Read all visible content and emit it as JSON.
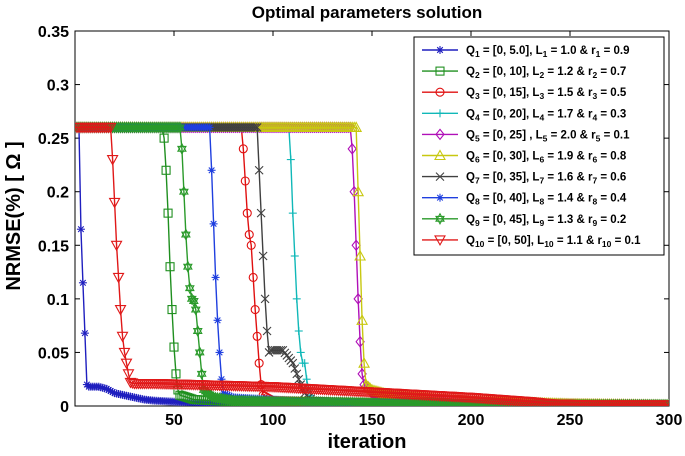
{
  "chart_data": {
    "type": "line",
    "title": "Optimal parameters solution",
    "xlabel": "iteration",
    "ylabel": "NRMSE(%) [ Ω ]",
    "xlim": [
      0,
      300
    ],
    "ylim": [
      0,
      0.35
    ],
    "x_ticks": [
      "50",
      "100",
      "150",
      "200",
      "250",
      "300"
    ],
    "y_ticks": [
      "0",
      "0.05",
      "0.1",
      "0.15",
      "0.2",
      "0.25",
      "0.3",
      "0.35"
    ],
    "grid": false,
    "legend_position": "top-right",
    "series": [
      {
        "name": "Q1 = [0, 5.0], L1 = 1.0 & r1 = 0.9",
        "color": "#1f1fbf",
        "marker": "asterisk",
        "x": [
          0,
          2,
          3,
          4,
          5,
          6,
          7,
          8,
          12,
          16,
          20,
          25,
          30,
          35,
          40,
          50,
          60,
          80,
          100,
          150,
          200,
          250,
          300
        ],
        "y": [
          0.26,
          0.26,
          0.165,
          0.115,
          0.068,
          0.02,
          0.018,
          0.018,
          0.018,
          0.016,
          0.012,
          0.01,
          0.008,
          0.006,
          0.005,
          0.004,
          0.003,
          0.002,
          0.0015,
          0.001,
          0.001,
          0.001,
          0.001
        ]
      },
      {
        "name": "Q2 = [0, 10], L2 = 1.2 & r2 = 0.7",
        "color": "#1f8f1f",
        "marker": "square",
        "x": [
          0,
          44,
          45,
          46,
          47,
          48,
          49,
          50,
          51,
          52,
          53,
          55,
          60,
          80,
          100,
          150,
          200,
          250,
          300
        ],
        "y": [
          0.26,
          0.26,
          0.25,
          0.22,
          0.18,
          0.13,
          0.09,
          0.055,
          0.03,
          0.015,
          0.01,
          0.009,
          0.006,
          0.004,
          0.003,
          0.002,
          0.001,
          0.001,
          0.001
        ]
      },
      {
        "name": "Q3 = [0, 15], L3 = 1.5 & r3 = 0.5",
        "color": "#e01010",
        "marker": "circle",
        "x": [
          0,
          84,
          85,
          86,
          87,
          88,
          89,
          90,
          91,
          92,
          93,
          94,
          95,
          100,
          150,
          200,
          250,
          300
        ],
        "y": [
          0.26,
          0.26,
          0.24,
          0.21,
          0.18,
          0.16,
          0.15,
          0.12,
          0.09,
          0.065,
          0.04,
          0.02,
          0.01,
          0.005,
          0.003,
          0.002,
          0.001,
          0.001
        ]
      },
      {
        "name": "Q4 = [0, 20], L4 = 1.7 & r4 = 0.3",
        "color": "#10b8b8",
        "marker": "plus",
        "x": [
          0,
          108,
          109,
          110,
          111,
          112,
          113,
          114,
          115,
          116,
          117,
          118,
          119,
          120,
          150,
          200,
          250,
          300
        ],
        "y": [
          0.26,
          0.26,
          0.23,
          0.18,
          0.14,
          0.1,
          0.07,
          0.05,
          0.04,
          0.04,
          0.025,
          0.015,
          0.01,
          0.005,
          0.003,
          0.002,
          0.001,
          0.001
        ]
      },
      {
        "name": "Q5 = [0, 25] , L5 = 2.0 & r5 = 0.1",
        "color": "#b010b8",
        "marker": "diamond",
        "x": [
          0,
          139,
          140,
          141,
          142,
          143,
          144,
          145,
          146,
          147,
          148,
          150,
          160,
          200,
          250,
          300
        ],
        "y": [
          0.26,
          0.26,
          0.24,
          0.2,
          0.15,
          0.1,
          0.06,
          0.03,
          0.02,
          0.018,
          0.018,
          0.012,
          0.008,
          0.004,
          0.002,
          0.001
        ]
      },
      {
        "name": "Q6 = [0, 30], L6 = 1.9 & r6 = 0.8",
        "color": "#c8c810",
        "marker": "triangle",
        "x": [
          0,
          142,
          143,
          144,
          145,
          146,
          147,
          148,
          150,
          160,
          200,
          250,
          300
        ],
        "y": [
          0.26,
          0.26,
          0.2,
          0.14,
          0.08,
          0.04,
          0.02,
          0.018,
          0.015,
          0.01,
          0.005,
          0.002,
          0.001
        ]
      },
      {
        "name": "Q7 = [0, 35], L7 = 1.6 & r7 = 0.6",
        "color": "#404040",
        "marker": "x",
        "x": [
          0,
          92,
          93,
          94,
          95,
          96,
          97,
          98,
          99,
          100,
          105,
          110,
          112,
          114,
          116,
          118,
          120,
          150,
          200,
          250,
          300
        ],
        "y": [
          0.26,
          0.26,
          0.22,
          0.18,
          0.14,
          0.1,
          0.07,
          0.05,
          0.052,
          0.052,
          0.052,
          0.04,
          0.03,
          0.02,
          0.012,
          0.008,
          0.005,
          0.003,
          0.002,
          0.001,
          0.001
        ]
      },
      {
        "name": "Q8 = [0, 40], L8 = 1.4 & r8 = 0.4",
        "color": "#1f3fdf",
        "marker": "star",
        "x": [
          0,
          68,
          69,
          70,
          71,
          72,
          73,
          74,
          75,
          80,
          100,
          120,
          150,
          200,
          250,
          300
        ],
        "y": [
          0.26,
          0.26,
          0.22,
          0.17,
          0.12,
          0.08,
          0.05,
          0.025,
          0.012,
          0.008,
          0.006,
          0.004,
          0.003,
          0.002,
          0.001,
          0.001
        ]
      },
      {
        "name": "Q9 = [0, 45], L9 = 1.3 & r9 = 0.2",
        "color": "#2a9a2a",
        "marker": "hexagram",
        "x": [
          0,
          53,
          54,
          55,
          56,
          57,
          58,
          59,
          60,
          61,
          62,
          63,
          64,
          65,
          70,
          80,
          100,
          150,
          200,
          250,
          300
        ],
        "y": [
          0.26,
          0.26,
          0.24,
          0.2,
          0.16,
          0.13,
          0.11,
          0.1,
          0.098,
          0.09,
          0.07,
          0.05,
          0.03,
          0.015,
          0.008,
          0.005,
          0.004,
          0.003,
          0.002,
          0.001,
          0.001
        ]
      },
      {
        "name": "Q10 = [0, 50], L10 = 1.1 & r10 = 0.1",
        "color": "#e01818",
        "marker": "triangle-down",
        "x": [
          0,
          18,
          19,
          20,
          21,
          22,
          23,
          24,
          25,
          26,
          27,
          28,
          30,
          40,
          60,
          80,
          100,
          130,
          160,
          200,
          230,
          240,
          260,
          300
        ],
        "y": [
          0.26,
          0.26,
          0.23,
          0.19,
          0.15,
          0.12,
          0.09,
          0.065,
          0.05,
          0.04,
          0.03,
          0.022,
          0.021,
          0.021,
          0.02,
          0.019,
          0.018,
          0.015,
          0.012,
          0.008,
          0.004,
          0.002,
          0.001,
          0.001
        ]
      }
    ]
  },
  "legend": {
    "entries": [
      {
        "q": "Q",
        "qs": "1",
        "range": " = [0, 5.0], L",
        "ls": "1",
        "lval": " = 1.0 & r",
        "rs": "1",
        "rval": " = 0.9"
      },
      {
        "q": "Q",
        "qs": "2",
        "range": " = [0, 10], L",
        "ls": "2",
        "lval": " = 1.2 & r",
        "rs": "2",
        "rval": " = 0.7"
      },
      {
        "q": "Q",
        "qs": "3",
        "range": " = [0, 15], L",
        "ls": "3",
        "lval": " = 1.5 & r",
        "rs": "3",
        "rval": " = 0.5"
      },
      {
        "q": "Q",
        "qs": "4",
        "range": " = [0, 20], L",
        "ls": "4",
        "lval": " = 1.7 & r",
        "rs": "4",
        "rval": " = 0.3"
      },
      {
        "q": "Q",
        "qs": "5",
        "range": " = [0, 25] , L",
        "ls": "5",
        "lval": " = 2.0 & r",
        "rs": "5",
        "rval": " = 0.1"
      },
      {
        "q": "Q",
        "qs": "6",
        "range": " = [0, 30], L",
        "ls": "6",
        "lval": " = 1.9 & r",
        "rs": "6",
        "rval": " = 0.8"
      },
      {
        "q": "Q",
        "qs": "7",
        "range": " = [0, 35], L",
        "ls": "7",
        "lval": " = 1.6 & r",
        "rs": "7",
        "rval": " = 0.6"
      },
      {
        "q": "Q",
        "qs": "8",
        "range": " = [0, 40], L",
        "ls": "8",
        "lval": " = 1.4 & r",
        "rs": "8",
        "rval": " = 0.4"
      },
      {
        "q": "Q",
        "qs": "9",
        "range": " = [0, 45], L",
        "ls": "9",
        "lval": " = 1.3 & r",
        "rs": "9",
        "rval": " = 0.2"
      },
      {
        "q": "Q",
        "qs": "10",
        "range": " = [0, 50], L",
        "ls": "10",
        "lval": " = 1.1 & r",
        "rs": "10",
        "rval": " = 0.1"
      }
    ]
  }
}
